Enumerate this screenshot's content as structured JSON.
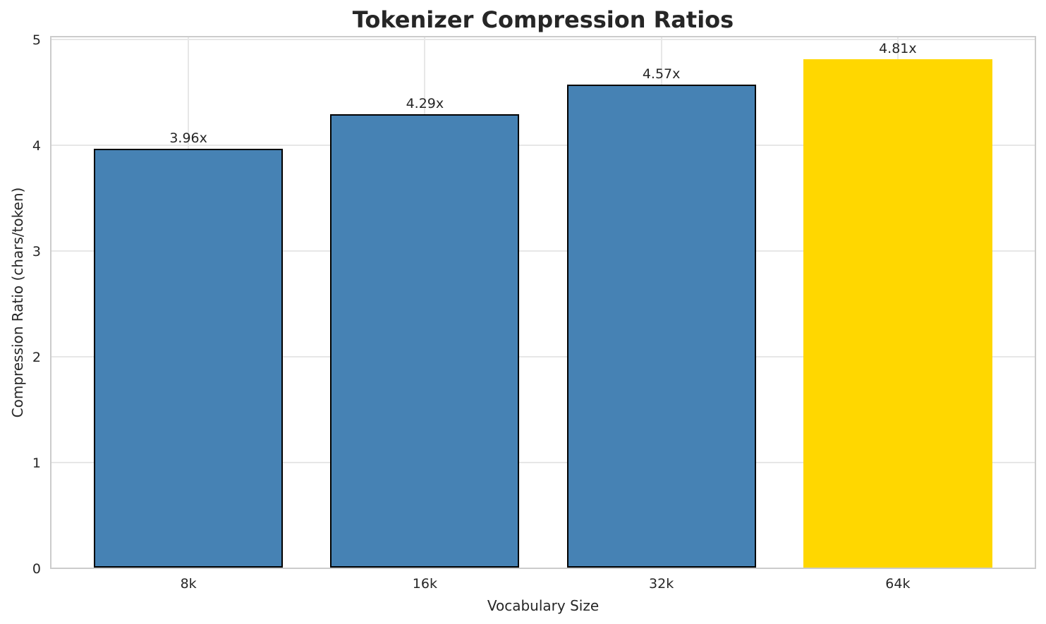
{
  "chart_data": {
    "type": "bar",
    "title": "Tokenizer Compression Ratios",
    "xlabel": "Vocabulary Size",
    "ylabel": "Compression Ratio (chars/token)",
    "categories": [
      "8k",
      "16k",
      "32k",
      "64k"
    ],
    "values": [
      3.96,
      4.29,
      4.57,
      4.81
    ],
    "bar_labels": [
      "3.96x",
      "4.29x",
      "4.57x",
      "4.81x"
    ],
    "yticks": [
      0,
      1,
      2,
      3,
      4,
      5
    ],
    "ylim": [
      0,
      5.04
    ],
    "grid": true,
    "legend": false,
    "bar_colors": [
      "#4682B4",
      "#4682B4",
      "#4682B4",
      "#FFD700"
    ],
    "bar_edge_colors": [
      "#000000",
      "#000000",
      "#000000",
      "#FFD700"
    ],
    "highlight_index": 3
  },
  "colors": {
    "background": "#ffffff",
    "grid": "#e7e7e7",
    "spine": "#cccccc",
    "text": "#262626",
    "bar_blue": "#4682B4",
    "bar_gold": "#FFD700",
    "bar_edge": "#000000"
  }
}
